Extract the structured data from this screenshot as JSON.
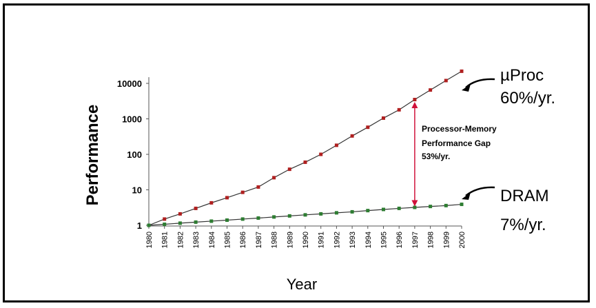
{
  "chart_data": {
    "type": "line",
    "xlabel": "Year",
    "ylabel": "Performance",
    "yscale": "log",
    "ylim": [
      1,
      30000
    ],
    "yticks": [
      "1",
      "10",
      "100",
      "1000",
      "10000"
    ],
    "x": [
      1980,
      1981,
      1982,
      1983,
      1984,
      1985,
      1986,
      1987,
      1988,
      1989,
      1990,
      1991,
      1992,
      1993,
      1994,
      1995,
      1996,
      1997,
      1998,
      1999,
      2000
    ],
    "xtick_labels": [
      "1980",
      "1981",
      "1982",
      "1983",
      "1984",
      "1985",
      "1986",
      "1987",
      "1988",
      "1989",
      "1990",
      "1991",
      "1992",
      "1993",
      "1994",
      "1995",
      "1996",
      "1997",
      "1998",
      "1999",
      "2000"
    ],
    "series": [
      {
        "name": "µProc",
        "color": "#b02020",
        "values": [
          1,
          1.5,
          2.1,
          3,
          4.3,
          6,
          8.5,
          12,
          22,
          38,
          60,
          100,
          180,
          330,
          580,
          1050,
          1800,
          3500,
          6500,
          12000,
          22000
        ]
      },
      {
        "name": "DRAM",
        "color": "#2e7d32",
        "values": [
          1,
          1.07,
          1.15,
          1.23,
          1.31,
          1.4,
          1.5,
          1.6,
          1.72,
          1.84,
          1.97,
          2.1,
          2.25,
          2.4,
          2.6,
          2.8,
          3,
          3.2,
          3.4,
          3.6,
          3.9
        ]
      }
    ],
    "annotations": {
      "uproc_name": "µProc",
      "uproc_rate": "60%/yr.",
      "dram_name": "DRAM",
      "dram_rate": "7%/yr.",
      "gap_line1": "Processor-Memory",
      "gap_line2": "Performance Gap",
      "gap_line3": "53%/yr.",
      "gap_year": 1997
    }
  }
}
